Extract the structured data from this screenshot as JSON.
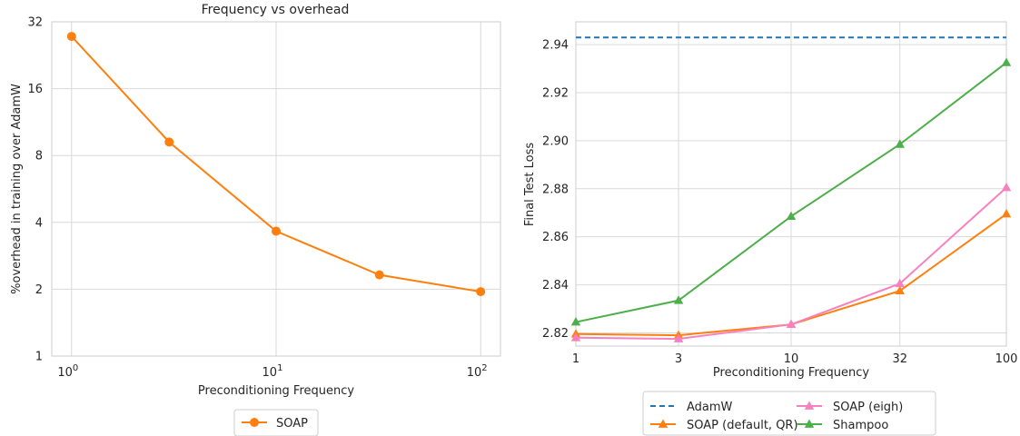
{
  "chart_data": [
    {
      "type": "line",
      "title": "Frequency vs overhead",
      "xlabel": "Preconditioning Frequency",
      "ylabel": "%overhead in training over AdamW",
      "xscale": "log",
      "yscale": "log2",
      "xlim": [
        0.8,
        125
      ],
      "ylim": [
        1,
        32
      ],
      "xticks": [
        {
          "v": 1,
          "base": "10",
          "exp": "0"
        },
        {
          "v": 10,
          "base": "10",
          "exp": "1"
        },
        {
          "v": 100,
          "base": "10",
          "exp": "2"
        }
      ],
      "yticks": [
        {
          "v": 1,
          "label": "1"
        },
        {
          "v": 2,
          "label": "2"
        },
        {
          "v": 4,
          "label": "4"
        },
        {
          "v": 8,
          "label": "8"
        },
        {
          "v": 16,
          "label": "16"
        },
        {
          "v": 32,
          "label": "32"
        }
      ],
      "grid": true,
      "legend_position": "bottom-center",
      "series": [
        {
          "name": "SOAP",
          "color": "#ff7f0e",
          "marker": "circle",
          "x": [
            1,
            3,
            10,
            32,
            100
          ],
          "y": [
            27.5,
            9.2,
            3.65,
            2.32,
            1.95
          ]
        }
      ]
    },
    {
      "type": "line",
      "title": "",
      "xlabel": "Preconditioning Frequency",
      "ylabel": "Final Test Loss",
      "xscale": "log",
      "yscale": "linear",
      "xlim": [
        1,
        100
      ],
      "ylim": [
        2.8145,
        2.9495
      ],
      "xticks": [
        {
          "v": 1,
          "label": "1"
        },
        {
          "v": 3,
          "label": "3"
        },
        {
          "v": 10,
          "label": "10"
        },
        {
          "v": 32,
          "label": "32"
        },
        {
          "v": 100,
          "label": "100"
        }
      ],
      "yticks": [
        {
          "v": 2.82,
          "label": "2.82"
        },
        {
          "v": 2.84,
          "label": "2.84"
        },
        {
          "v": 2.86,
          "label": "2.86"
        },
        {
          "v": 2.88,
          "label": "2.88"
        },
        {
          "v": 2.9,
          "label": "2.90"
        },
        {
          "v": 2.92,
          "label": "2.92"
        },
        {
          "v": 2.94,
          "label": "2.94"
        }
      ],
      "grid": true,
      "legend_position": "bottom-center",
      "legend_order": [
        0,
        1,
        2,
        3
      ],
      "series": [
        {
          "name": "AdamW",
          "color": "#1f77b4",
          "style": "dashed",
          "marker": "none",
          "x": [
            1,
            100
          ],
          "y": [
            2.943,
            2.943
          ]
        },
        {
          "name": "SOAP (default, QR)",
          "color": "#ff7f0e",
          "marker": "triangle",
          "x": [
            1,
            3,
            10,
            32,
            100
          ],
          "y": [
            2.8195,
            2.819,
            2.8235,
            2.8375,
            2.8695
          ]
        },
        {
          "name": "SOAP (eigh)",
          "color": "#f781bf",
          "marker": "triangle",
          "x": [
            1,
            3,
            10,
            32,
            100
          ],
          "y": [
            2.818,
            2.8175,
            2.8235,
            2.8405,
            2.8805
          ]
        },
        {
          "name": "Shampoo",
          "color": "#4daf4a",
          "marker": "triangle",
          "x": [
            1,
            3,
            10,
            32,
            100
          ],
          "y": [
            2.8245,
            2.8335,
            2.8685,
            2.8985,
            2.9325
          ]
        }
      ]
    }
  ]
}
